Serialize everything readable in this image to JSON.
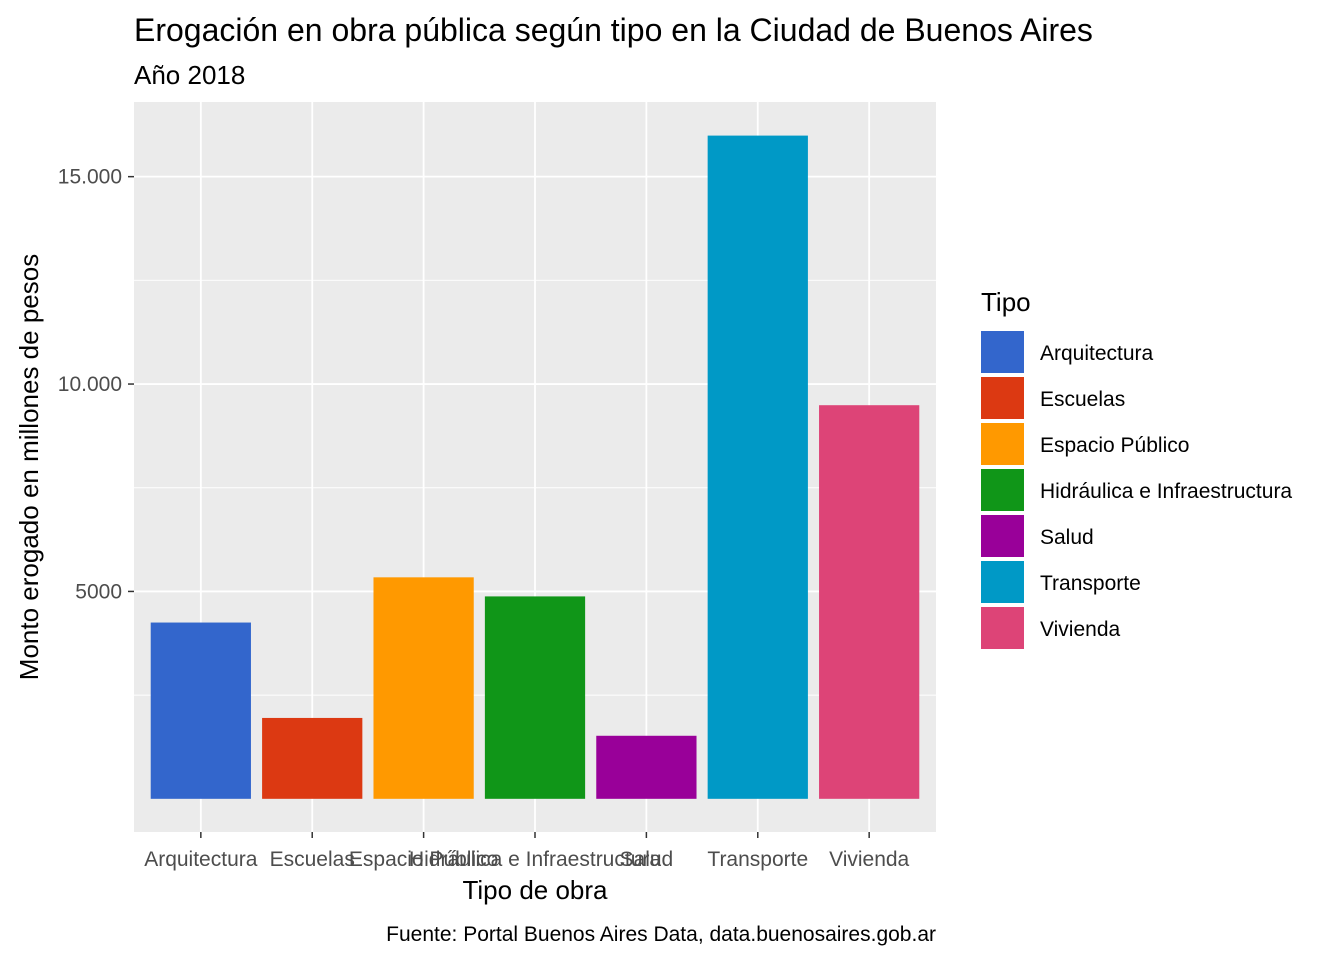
{
  "chart_data": {
    "type": "bar",
    "title": "Erogación en obra pública según tipo en la Ciudad de Buenos Aires",
    "subtitle": "Año 2018",
    "xlabel": "Tipo de obra",
    "ylabel": "Monto erogado en millones de pesos",
    "caption": "Fuente: Portal Buenos Aires Data, data.buenosaires.gob.ar",
    "categories": [
      "Arquitectura",
      "Escuelas",
      "Espacio Público",
      "Hidráulica e Infraestructura",
      "Salud",
      "Transporte",
      "Vivienda"
    ],
    "values": [
      4250,
      1950,
      5340,
      4880,
      1520,
      15990,
      9490
    ],
    "colors": [
      "#3366CC",
      "#DC3912",
      "#FF9900",
      "#109618",
      "#990099",
      "#0099C6",
      "#DD4477"
    ],
    "yticks": [
      5000,
      10000,
      15000
    ],
    "ytick_labels": [
      "5000",
      "10.000",
      "15.000"
    ],
    "ylim": [
      -800,
      16800
    ],
    "grid": true,
    "legend": {
      "title": "Tipo",
      "position": "right",
      "entries": [
        "Arquitectura",
        "Escuelas",
        "Espacio Público",
        "Hidráulica e Infraestructura",
        "Salud",
        "Transporte",
        "Vivienda"
      ]
    }
  }
}
